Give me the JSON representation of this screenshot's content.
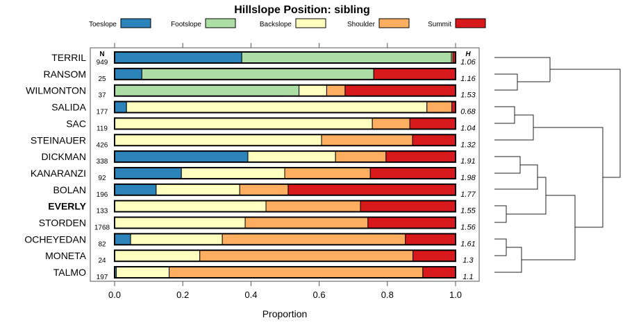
{
  "chart_data": {
    "type": "bar",
    "orientation": "horizontal",
    "stacked": true,
    "title": "Hillslope Position: sibling",
    "xlabel": "Proportion",
    "xlim": [
      0,
      1
    ],
    "xticks": [
      "0.0",
      "0.2",
      "0.4",
      "0.6",
      "0.8",
      "1.0"
    ],
    "xtick_values": [
      0,
      0.2,
      0.4,
      0.6,
      0.8,
      1.0
    ],
    "n_header": "N",
    "h_header": "H",
    "legend_placement": "top",
    "series": [
      {
        "name": "Toeslope",
        "color": "#2B83BA"
      },
      {
        "name": "Footslope",
        "color": "#ABDDA4"
      },
      {
        "name": "Backslope",
        "color": "#FFFFBF"
      },
      {
        "name": "Shoulder",
        "color": "#FDAE61"
      },
      {
        "name": "Summit",
        "color": "#D7191C"
      }
    ],
    "categories": [
      "TERRIL",
      "RANSOM",
      "WILMONTON",
      "SALIDA",
      "SAC",
      "STEINAUER",
      "DICKMAN",
      "KANARANZI",
      "BOLAN",
      "EVERLY",
      "STORDEN",
      "OCHEYEDAN",
      "MONETA",
      "TALMO"
    ],
    "highlight": "EVERLY",
    "n": [
      "949",
      "25",
      "37",
      "177",
      "119",
      "426",
      "338",
      "92",
      "196",
      "133",
      "1768",
      "82",
      "24",
      "197"
    ],
    "h": [
      "1.06",
      "1.16",
      "1.53",
      "0.68",
      "1.04",
      "1.32",
      "1.91",
      "1.98",
      "1.77",
      "1.55",
      "1.56",
      "1.61",
      "1.3",
      "1.1"
    ],
    "values": [
      [
        0.373,
        0.615,
        0.004,
        0.0,
        0.008
      ],
      [
        0.08,
        0.68,
        0.0,
        0.0,
        0.24
      ],
      [
        0.0,
        0.541,
        0.081,
        0.054,
        0.324
      ],
      [
        0.035,
        0.0,
        0.881,
        0.073,
        0.011
      ],
      [
        0.0,
        0.0,
        0.756,
        0.11,
        0.134
      ],
      [
        0.0,
        0.0,
        0.607,
        0.267,
        0.126
      ],
      [
        0.391,
        0.0,
        0.257,
        0.148,
        0.204
      ],
      [
        0.196,
        0.0,
        0.303,
        0.251,
        0.25
      ],
      [
        0.122,
        0.0,
        0.245,
        0.142,
        0.491
      ],
      [
        0.0,
        0.0,
        0.444,
        0.277,
        0.279
      ],
      [
        0.0,
        0.0,
        0.383,
        0.36,
        0.257
      ],
      [
        0.047,
        0.0,
        0.269,
        0.537,
        0.147
      ],
      [
        0.0,
        0.0,
        0.25,
        0.625,
        0.125
      ],
      [
        0.005,
        0.0,
        0.155,
        0.744,
        0.096
      ]
    ]
  }
}
